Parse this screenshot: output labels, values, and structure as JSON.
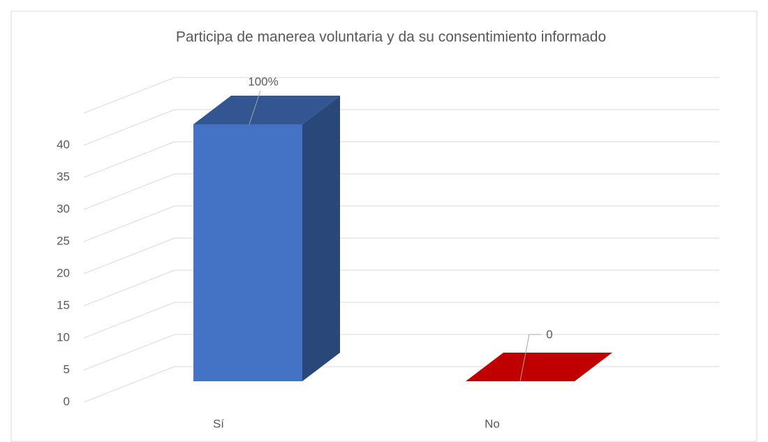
{
  "chart_data": {
    "type": "bar3d",
    "title": "Participa de manerea voluntaria y da su consentimiento informado",
    "categories": [
      "Sí",
      "No"
    ],
    "values": [
      40,
      0
    ],
    "value_labels": [
      "100%",
      "0"
    ],
    "colors": [
      "#4472c4",
      "#c00000"
    ],
    "ylim": [
      0,
      45
    ],
    "yticks": [
      0,
      5,
      10,
      15,
      20,
      25,
      30,
      35,
      40
    ],
    "grid": true
  }
}
